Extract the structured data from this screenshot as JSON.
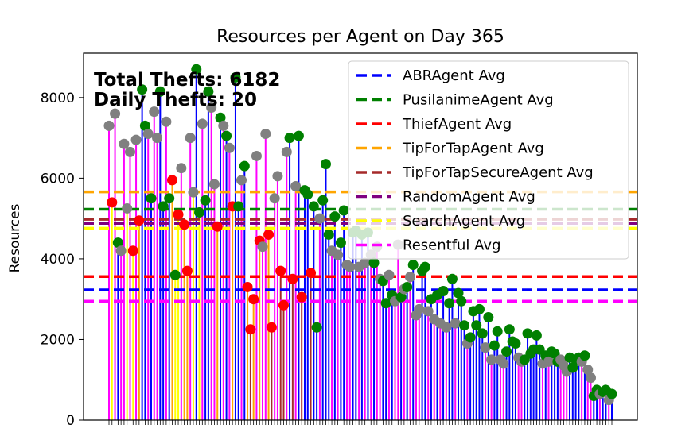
{
  "chart_data": {
    "type": "lollipop",
    "title": "Resources per Agent on Day 365",
    "ylabel": "Resources",
    "xlabel": "",
    "ylim": [
      0,
      9100
    ],
    "yticks": [
      0,
      2000,
      4000,
      6000,
      8000
    ],
    "annotations": [
      "Total Thefts: 6182",
      "Daily Thefts: 20"
    ],
    "legend": {
      "position": "top-right"
    },
    "averages": [
      {
        "name": "ABRAgent Avg",
        "value": 3230,
        "color": "#0000ff"
      },
      {
        "name": "PusilanimeAgent Avg",
        "value": 5230,
        "color": "#008000"
      },
      {
        "name": "ThiefAgent Avg",
        "value": 3560,
        "color": "#ff0000"
      },
      {
        "name": "TipForTapAgent Avg",
        "value": 5660,
        "color": "#ffa500"
      },
      {
        "name": "TipForTapSecureAgent Avg",
        "value": 4980,
        "color": "#a52a2a"
      },
      {
        "name": "RandomAgent Avg",
        "value": 4880,
        "color": "#800080"
      },
      {
        "name": "SearchAgent Avg",
        "value": 4760,
        "color": "#ffff00"
      },
      {
        "name": "Resentful Avg",
        "value": 2950,
        "color": "#ff00ff"
      }
    ],
    "bars": [
      {
        "v": 7300,
        "s": "#ff00ff",
        "m": "#808080"
      },
      {
        "v": 5400,
        "s": "#ffff00",
        "m": "#ff0000"
      },
      {
        "v": 7600,
        "s": "#ff00ff",
        "m": "#808080"
      },
      {
        "v": 4400,
        "s": "#0000ff",
        "m": "#008000"
      },
      {
        "v": 4200,
        "s": "#ff00ff",
        "m": "#808080"
      },
      {
        "v": 6850,
        "s": "#ff00ff",
        "m": "#808080"
      },
      {
        "v": 5250,
        "s": "#ffff00",
        "m": "#808080"
      },
      {
        "v": 6650,
        "s": "#ff00ff",
        "m": "#808080"
      },
      {
        "v": 4200,
        "s": "#ffff00",
        "m": "#ff0000"
      },
      {
        "v": 6950,
        "s": "#ff00ff",
        "m": "#808080"
      },
      {
        "v": 4950,
        "s": "#ffa500",
        "m": "#ff0000"
      },
      {
        "v": 8200,
        "s": "#0000ff",
        "m": "#008000"
      },
      {
        "v": 7300,
        "s": "#0000ff",
        "m": "#008000"
      },
      {
        "v": 7100,
        "s": "#ff00ff",
        "m": "#808080"
      },
      {
        "v": 5500,
        "s": "#0000ff",
        "m": "#008000"
      },
      {
        "v": 7650,
        "s": "#ff00ff",
        "m": "#808080"
      },
      {
        "v": 7000,
        "s": "#ff00ff",
        "m": "#808080"
      },
      {
        "v": 8150,
        "s": "#0000ff",
        "m": "#008000"
      },
      {
        "v": 5300,
        "s": "#0000ff",
        "m": "#008000"
      },
      {
        "v": 7400,
        "s": "#ff00ff",
        "m": "#808080"
      },
      {
        "v": 5500,
        "s": "#0000ff",
        "m": "#008000"
      },
      {
        "v": 5950,
        "s": "#ffa500",
        "m": "#ff0000"
      },
      {
        "v": 3600,
        "s": "#ffff00",
        "m": "#008000"
      },
      {
        "v": 5100,
        "s": "#ffff00",
        "m": "#ff0000"
      },
      {
        "v": 6250,
        "s": "#ff00ff",
        "m": "#808080"
      },
      {
        "v": 4850,
        "s": "#ffa500",
        "m": "#ff0000"
      },
      {
        "v": 3700,
        "s": "#ffa500",
        "m": "#ff0000"
      },
      {
        "v": 7000,
        "s": "#ff00ff",
        "m": "#808080"
      },
      {
        "v": 5650,
        "s": "#ffff00",
        "m": "#808080"
      },
      {
        "v": 8700,
        "s": "#0000ff",
        "m": "#008000"
      },
      {
        "v": 5150,
        "s": "#ffff00",
        "m": "#008000"
      },
      {
        "v": 7350,
        "s": "#ff00ff",
        "m": "#808080"
      },
      {
        "v": 5450,
        "s": "#0000ff",
        "m": "#008000"
      },
      {
        "v": 8150,
        "s": "#0000ff",
        "m": "#008000"
      },
      {
        "v": 7750,
        "s": "#ff00ff",
        "m": "#808080"
      },
      {
        "v": 5850,
        "s": "#ff00ff",
        "m": "#808080"
      },
      {
        "v": 4800,
        "s": "#ffa500",
        "m": "#ff0000"
      },
      {
        "v": 7500,
        "s": "#0000ff",
        "m": "#008000"
      },
      {
        "v": 7300,
        "s": "#ff00ff",
        "m": "#808080"
      },
      {
        "v": 7050,
        "s": "#0000ff",
        "m": "#008000"
      },
      {
        "v": 6750,
        "s": "#ff00ff",
        "m": "#808080"
      },
      {
        "v": 5300,
        "s": "#ffa500",
        "m": "#ff0000"
      },
      {
        "v": 8500,
        "s": "#0000ff",
        "m": "#008000"
      },
      {
        "v": 5300,
        "s": "#0000ff",
        "m": "#008000"
      },
      {
        "v": 5950,
        "s": "#ff00ff",
        "m": "#808080"
      },
      {
        "v": 6300,
        "s": "#0000ff",
        "m": "#008000"
      },
      {
        "v": 3300,
        "s": "#ffa500",
        "m": "#ff0000"
      },
      {
        "v": 2250,
        "s": "#a52a2a",
        "m": "#ff0000"
      },
      {
        "v": 3000,
        "s": "#ffa500",
        "m": "#ff0000"
      },
      {
        "v": 6550,
        "s": "#ff00ff",
        "m": "#808080"
      },
      {
        "v": 4450,
        "s": "#ffa500",
        "m": "#ff0000"
      },
      {
        "v": 4300,
        "s": "#ff00ff",
        "m": "#808080"
      },
      {
        "v": 7100,
        "s": "#ff00ff",
        "m": "#808080"
      },
      {
        "v": 4600,
        "s": "#ffa500",
        "m": "#ff0000"
      },
      {
        "v": 2300,
        "s": "#a52a2a",
        "m": "#ff0000"
      },
      {
        "v": 5500,
        "s": "#ff00ff",
        "m": "#808080"
      },
      {
        "v": 6050,
        "s": "#ff00ff",
        "m": "#808080"
      },
      {
        "v": 3700,
        "s": "#a52a2a",
        "m": "#ff0000"
      },
      {
        "v": 2850,
        "s": "#a52a2a",
        "m": "#ff0000"
      },
      {
        "v": 6650,
        "s": "#ff00ff",
        "m": "#808080"
      },
      {
        "v": 7000,
        "s": "#0000ff",
        "m": "#008000"
      },
      {
        "v": 3500,
        "s": "#a52a2a",
        "m": "#ff0000"
      },
      {
        "v": 5800,
        "s": "#ff00ff",
        "m": "#808080"
      },
      {
        "v": 7050,
        "s": "#0000ff",
        "m": "#008000"
      },
      {
        "v": 3050,
        "s": "#a52a2a",
        "m": "#ff0000"
      },
      {
        "v": 5700,
        "s": "#0000ff",
        "m": "#008000"
      },
      {
        "v": 5600,
        "s": "#0000ff",
        "m": "#008000"
      },
      {
        "v": 3650,
        "s": "#a52a2a",
        "m": "#ff0000"
      },
      {
        "v": 5300,
        "s": "#0000ff",
        "m": "#008000"
      },
      {
        "v": 2300,
        "s": "#0000ff",
        "m": "#008000"
      },
      {
        "v": 5000,
        "s": "#ff00ff",
        "m": "#808080"
      },
      {
        "v": 5450,
        "s": "#0000ff",
        "m": "#008000"
      },
      {
        "v": 6350,
        "s": "#0000ff",
        "m": "#008000"
      },
      {
        "v": 4600,
        "s": "#0000ff",
        "m": "#008000"
      },
      {
        "v": 4200,
        "s": "#ff00ff",
        "m": "#808080"
      },
      {
        "v": 5050,
        "s": "#0000ff",
        "m": "#008000"
      },
      {
        "v": 4100,
        "s": "#ff00ff",
        "m": "#808080"
      },
      {
        "v": 4400,
        "s": "#0000ff",
        "m": "#008000"
      },
      {
        "v": 5200,
        "s": "#0000ff",
        "m": "#008000"
      },
      {
        "v": 3850,
        "s": "#ff00ff",
        "m": "#808080"
      },
      {
        "v": 3800,
        "s": "#ff00ff",
        "m": "#808080"
      },
      {
        "v": 4650,
        "s": "#0000ff",
        "m": "#008000"
      },
      {
        "v": 4700,
        "s": "#0000ff",
        "m": "#008000"
      },
      {
        "v": 3800,
        "s": "#ff00ff",
        "m": "#808080"
      },
      {
        "v": 4600,
        "s": "#0000ff",
        "m": "#008000"
      },
      {
        "v": 3900,
        "s": "#ff00ff",
        "m": "#808080"
      },
      {
        "v": 4650,
        "s": "#0000ff",
        "m": "#008000"
      },
      {
        "v": 4100,
        "s": "#ff00ff",
        "m": "#808080"
      },
      {
        "v": 3900,
        "s": "#0000ff",
        "m": "#008000"
      },
      {
        "v": 4300,
        "s": "#ff00ff",
        "m": "#808080"
      },
      {
        "v": 3500,
        "s": "#ff00ff",
        "m": "#808080"
      },
      {
        "v": 3450,
        "s": "#0000ff",
        "m": "#008000"
      },
      {
        "v": 2900,
        "s": "#0000ff",
        "m": "#008000"
      },
      {
        "v": 3600,
        "s": "#ff00ff",
        "m": "#808080"
      },
      {
        "v": 3100,
        "s": "#0000ff",
        "m": "#008000"
      },
      {
        "v": 2950,
        "s": "#ff00ff",
        "m": "#808080"
      },
      {
        "v": 4350,
        "s": "#ff00ff",
        "m": "#808080"
      },
      {
        "v": 3050,
        "s": "#0000ff",
        "m": "#008000"
      },
      {
        "v": 3250,
        "s": "#ff00ff",
        "m": "#808080"
      },
      {
        "v": 3300,
        "s": "#0000ff",
        "m": "#008000"
      },
      {
        "v": 3550,
        "s": "#ff00ff",
        "m": "#808080"
      },
      {
        "v": 3850,
        "s": "#0000ff",
        "m": "#008000"
      },
      {
        "v": 2600,
        "s": "#ff00ff",
        "m": "#808080"
      },
      {
        "v": 2750,
        "s": "#ff00ff",
        "m": "#808080"
      },
      {
        "v": 3700,
        "s": "#0000ff",
        "m": "#008000"
      },
      {
        "v": 3800,
        "s": "#0000ff",
        "m": "#008000"
      },
      {
        "v": 2700,
        "s": "#ff00ff",
        "m": "#808080"
      },
      {
        "v": 3000,
        "s": "#0000ff",
        "m": "#008000"
      },
      {
        "v": 2500,
        "s": "#ff00ff",
        "m": "#808080"
      },
      {
        "v": 3100,
        "s": "#0000ff",
        "m": "#008000"
      },
      {
        "v": 2400,
        "s": "#ff00ff",
        "m": "#808080"
      },
      {
        "v": 3200,
        "s": "#0000ff",
        "m": "#008000"
      },
      {
        "v": 2300,
        "s": "#ff00ff",
        "m": "#808080"
      },
      {
        "v": 2900,
        "s": "#0000ff",
        "m": "#008000"
      },
      {
        "v": 3500,
        "s": "#0000ff",
        "m": "#008000"
      },
      {
        "v": 2400,
        "s": "#ff00ff",
        "m": "#808080"
      },
      {
        "v": 3150,
        "s": "#0000ff",
        "m": "#008000"
      },
      {
        "v": 2950,
        "s": "#0000ff",
        "m": "#008000"
      },
      {
        "v": 2350,
        "s": "#0000ff",
        "m": "#008000"
      },
      {
        "v": 1900,
        "s": "#ff00ff",
        "m": "#808080"
      },
      {
        "v": 2050,
        "s": "#0000ff",
        "m": "#008000"
      },
      {
        "v": 2700,
        "s": "#0000ff",
        "m": "#008000"
      },
      {
        "v": 2350,
        "s": "#0000ff",
        "m": "#008000"
      },
      {
        "v": 2750,
        "s": "#0000ff",
        "m": "#008000"
      },
      {
        "v": 2150,
        "s": "#0000ff",
        "m": "#008000"
      },
      {
        "v": 1800,
        "s": "#ff00ff",
        "m": "#808080"
      },
      {
        "v": 2550,
        "s": "#0000ff",
        "m": "#008000"
      },
      {
        "v": 1500,
        "s": "#ff00ff",
        "m": "#808080"
      },
      {
        "v": 1850,
        "s": "#0000ff",
        "m": "#008000"
      },
      {
        "v": 2200,
        "s": "#0000ff",
        "m": "#008000"
      },
      {
        "v": 1500,
        "s": "#ff00ff",
        "m": "#808080"
      },
      {
        "v": 1400,
        "s": "#ff00ff",
        "m": "#808080"
      },
      {
        "v": 1700,
        "s": "#0000ff",
        "m": "#008000"
      },
      {
        "v": 2250,
        "s": "#0000ff",
        "m": "#008000"
      },
      {
        "v": 1950,
        "s": "#0000ff",
        "m": "#008000"
      },
      {
        "v": 1900,
        "s": "#0000ff",
        "m": "#008000"
      },
      {
        "v": 1550,
        "s": "#ff00ff",
        "m": "#808080"
      },
      {
        "v": 1450,
        "s": "#ff00ff",
        "m": "#808080"
      },
      {
        "v": 1500,
        "s": "#0000ff",
        "m": "#008000"
      },
      {
        "v": 2150,
        "s": "#0000ff",
        "m": "#008000"
      },
      {
        "v": 1650,
        "s": "#0000ff",
        "m": "#008000"
      },
      {
        "v": 1750,
        "s": "#0000ff",
        "m": "#008000"
      },
      {
        "v": 2100,
        "s": "#0000ff",
        "m": "#008000"
      },
      {
        "v": 1750,
        "s": "#0000ff",
        "m": "#008000"
      },
      {
        "v": 1400,
        "s": "#ff00ff",
        "m": "#808080"
      },
      {
        "v": 1600,
        "s": "#0000ff",
        "m": "#008000"
      },
      {
        "v": 1450,
        "s": "#ff00ff",
        "m": "#808080"
      },
      {
        "v": 1700,
        "s": "#0000ff",
        "m": "#008000"
      },
      {
        "v": 1650,
        "s": "#0000ff",
        "m": "#008000"
      },
      {
        "v": 1450,
        "s": "#0000ff",
        "m": "#008000"
      },
      {
        "v": 1500,
        "s": "#ff00ff",
        "m": "#808080"
      },
      {
        "v": 1350,
        "s": "#ff00ff",
        "m": "#808080"
      },
      {
        "v": 1200,
        "s": "#ff00ff",
        "m": "#808080"
      },
      {
        "v": 1550,
        "s": "#0000ff",
        "m": "#008000"
      },
      {
        "v": 1300,
        "s": "#0000ff",
        "m": "#008000"
      },
      {
        "v": 1500,
        "s": "#0000ff",
        "m": "#008000"
      },
      {
        "v": 1550,
        "s": "#0000ff",
        "m": "#008000"
      },
      {
        "v": 1450,
        "s": "#ff00ff",
        "m": "#808080"
      },
      {
        "v": 1600,
        "s": "#0000ff",
        "m": "#008000"
      },
      {
        "v": 1250,
        "s": "#ff00ff",
        "m": "#808080"
      },
      {
        "v": 1050,
        "s": "#ff00ff",
        "m": "#808080"
      },
      {
        "v": 600,
        "s": "#0000ff",
        "m": "#008000"
      },
      {
        "v": 750,
        "s": "#0000ff",
        "m": "#008000"
      },
      {
        "v": 650,
        "s": "#ff00ff",
        "m": "#808080"
      },
      {
        "v": 700,
        "s": "#0000ff",
        "m": "#008000"
      },
      {
        "v": 750,
        "s": "#0000ff",
        "m": "#008000"
      },
      {
        "v": 500,
        "s": "#ff00ff",
        "m": "#808080"
      },
      {
        "v": 650,
        "s": "#0000ff",
        "m": "#008000"
      }
    ]
  }
}
